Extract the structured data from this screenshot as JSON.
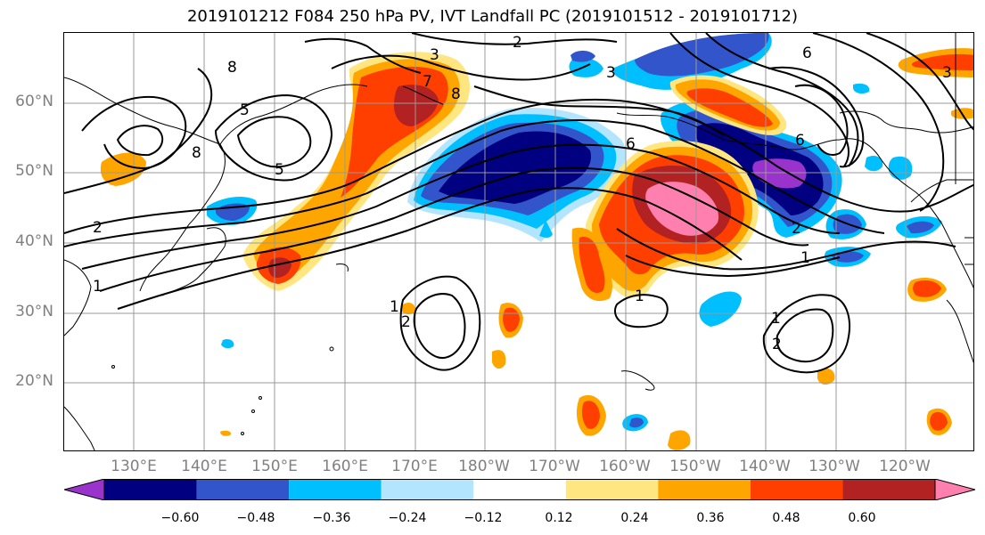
{
  "title": "2019101212 F084 250 hPa PV, IVT Landfall PC (2019101512 - 2019101712)",
  "lat_labels": [
    "60°N",
    "50°N",
    "40°N",
    "30°N",
    "20°N"
  ],
  "lon_labels": [
    "130°E",
    "140°E",
    "150°E",
    "160°E",
    "170°E",
    "180°W",
    "170°W",
    "160°W",
    "150°W",
    "140°W",
    "130°W",
    "120°W"
  ],
  "colorbar": {
    "colors": [
      "#9933cc",
      "#000080",
      "#3355cc",
      "#00bfff",
      "#b3e5ff",
      "#ffffff",
      "#ffe680",
      "#ffa500",
      "#ff3f00",
      "#b22222",
      "#ff7fae"
    ],
    "tick_labels": [
      "−0.60",
      "−0.48",
      "−0.36",
      "−0.24",
      "−0.12",
      "0.12",
      "0.24",
      "0.36",
      "0.48",
      "0.60"
    ]
  },
  "contour_labels": {
    "c1": "2",
    "c2": "3",
    "c3": "8",
    "c4": "7",
    "c5": "8",
    "c6": "3",
    "c7": "6",
    "c8": "3",
    "c9": "5",
    "c10": "8",
    "c11": "5",
    "c12": "2",
    "c13": "1",
    "c14": "6",
    "c15": "6",
    "c16": "2",
    "c17": "1",
    "c18": "1",
    "c19": "2",
    "c20": "1",
    "c21": "1",
    "c22": "2"
  }
}
